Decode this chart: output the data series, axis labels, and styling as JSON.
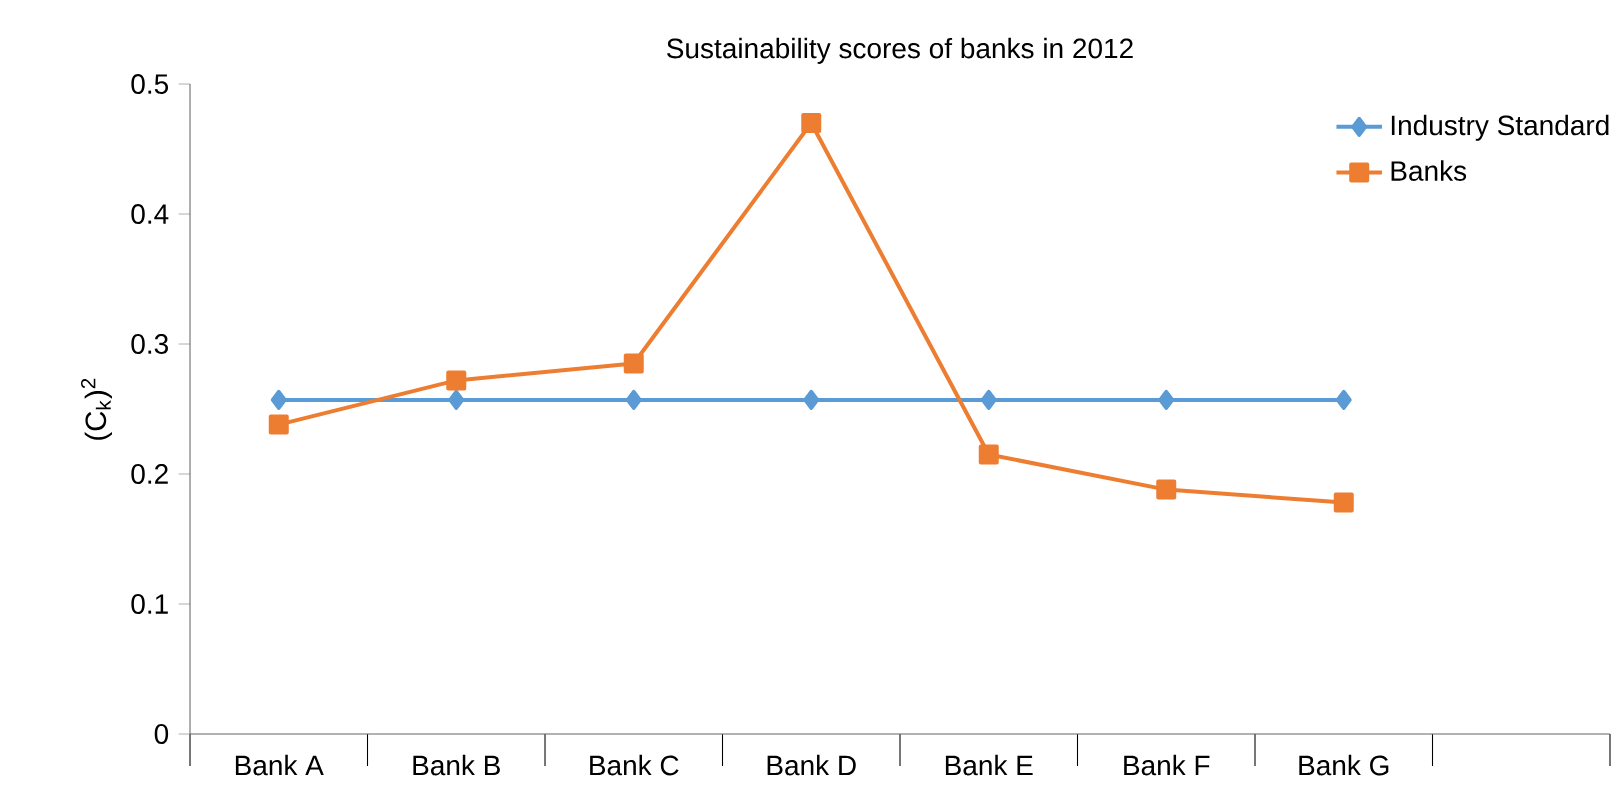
{
  "chart_data": {
    "type": "line",
    "title": "Sustainability scores of banks in 2012",
    "ylabel": "(C$_{k}$)$^{2}$",
    "categories": [
      "Bank A",
      "Bank B",
      "Bank C",
      "Bank D",
      "Bank E",
      "Bank F",
      "Bank G",
      null
    ],
    "series": [
      {
        "name": "Industry Standard",
        "color": "#5b9bd5",
        "marker": "diamond",
        "values": [
          0.257,
          0.257,
          0.257,
          0.257,
          0.257,
          0.257,
          0.257,
          null
        ]
      },
      {
        "name": "Banks",
        "color": "#ed7d31",
        "marker": "square",
        "values": [
          0.238,
          0.272,
          0.285,
          0.47,
          0.215,
          0.188,
          0.178,
          null
        ]
      }
    ],
    "ylim": [
      0,
      0.5
    ],
    "yticks": [
      0,
      0.1,
      0.2,
      0.3,
      0.4,
      0.5
    ],
    "grid": false,
    "legend": "top right",
    "line_style": "solid"
  }
}
